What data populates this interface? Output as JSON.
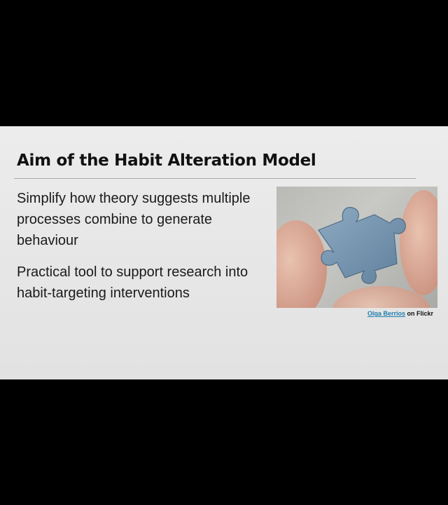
{
  "slide": {
    "title": "Aim of the Habit Alteration Model",
    "bullets": [
      "Simplify how theory suggests multiple processes combine to generate behaviour",
      "Practical tool to support research into habit-targeting interventions"
    ],
    "photo": {
      "icon": "puzzle-piece-photo",
      "credit_author": "Olga Berrios",
      "credit_suffix": " on Flickr"
    }
  },
  "colors": {
    "letterbox": "#000000",
    "slide_background": "#e8e8e8",
    "puzzle_piece": "#7d9bb5",
    "credit_link": "#1e7fae"
  }
}
